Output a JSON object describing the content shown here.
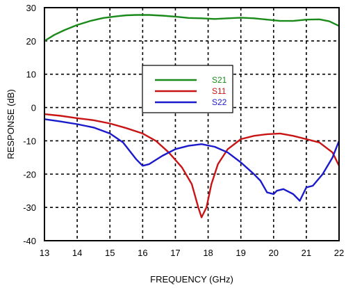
{
  "chart_data": {
    "type": "line",
    "title": "",
    "xlabel": "FREQUENCY (GHz)",
    "ylabel": "RESPONSE (dB)",
    "xlim": [
      13,
      22
    ],
    "ylim": [
      -40,
      30
    ],
    "xticks": [
      "13",
      "14",
      "15",
      "16",
      "17",
      "18",
      "19",
      "20",
      "21",
      "22"
    ],
    "yticks": [
      "30",
      "20",
      "10",
      "0",
      "-10",
      "-20",
      "-30",
      "-40"
    ],
    "grid": true,
    "grid_style": "dashed",
    "legend_position": "center",
    "series": [
      {
        "name": "S21",
        "color": "#1a8a1a",
        "x": [
          13.0,
          13.3,
          13.6,
          14.0,
          14.4,
          14.8,
          15.2,
          15.5,
          15.8,
          16.2,
          16.6,
          17.0,
          17.4,
          17.8,
          18.2,
          18.6,
          19.0,
          19.4,
          19.8,
          20.2,
          20.6,
          21.0,
          21.4,
          21.7,
          22.0
        ],
        "y": [
          20.0,
          21.8,
          23.2,
          24.8,
          26.0,
          26.9,
          27.4,
          27.7,
          27.8,
          27.8,
          27.6,
          27.3,
          26.9,
          26.8,
          26.6,
          26.8,
          27.0,
          26.8,
          26.4,
          26.0,
          26.0,
          26.4,
          26.5,
          25.9,
          24.5
        ]
      },
      {
        "name": "S11",
        "color": "#c81414",
        "x": [
          13.0,
          13.5,
          14.0,
          14.5,
          15.0,
          15.5,
          16.0,
          16.4,
          16.8,
          17.2,
          17.5,
          17.7,
          17.8,
          17.95,
          18.1,
          18.3,
          18.6,
          19.0,
          19.4,
          19.8,
          20.2,
          20.6,
          21.0,
          21.4,
          21.8,
          22.0
        ],
        "y": [
          -2.0,
          -2.5,
          -3.2,
          -3.8,
          -4.8,
          -6.2,
          -7.8,
          -10.0,
          -13.5,
          -18.0,
          -23.0,
          -30.0,
          -33.0,
          -30.0,
          -23.0,
          -17.0,
          -12.5,
          -9.5,
          -8.5,
          -8.0,
          -7.8,
          -8.5,
          -9.5,
          -10.5,
          -13.5,
          -17.5
        ]
      },
      {
        "name": "S22",
        "color": "#1a1acc",
        "x": [
          13.0,
          13.5,
          14.0,
          14.5,
          15.0,
          15.4,
          15.8,
          16.0,
          16.2,
          16.6,
          17.0,
          17.4,
          17.8,
          18.2,
          18.6,
          19.0,
          19.4,
          19.6,
          19.8,
          20.0,
          20.1,
          20.3,
          20.6,
          20.8,
          21.0,
          21.2,
          21.5,
          21.8,
          22.0
        ],
        "y": [
          -3.5,
          -4.2,
          -5.0,
          -6.0,
          -7.8,
          -10.5,
          -15.5,
          -17.5,
          -17.0,
          -14.5,
          -12.5,
          -11.5,
          -11.0,
          -11.8,
          -13.5,
          -16.5,
          -20.0,
          -22.0,
          -25.5,
          -26.0,
          -25.0,
          -24.5,
          -26.0,
          -28.0,
          -24.0,
          -23.5,
          -20.0,
          -15.0,
          -10.0
        ]
      }
    ]
  }
}
